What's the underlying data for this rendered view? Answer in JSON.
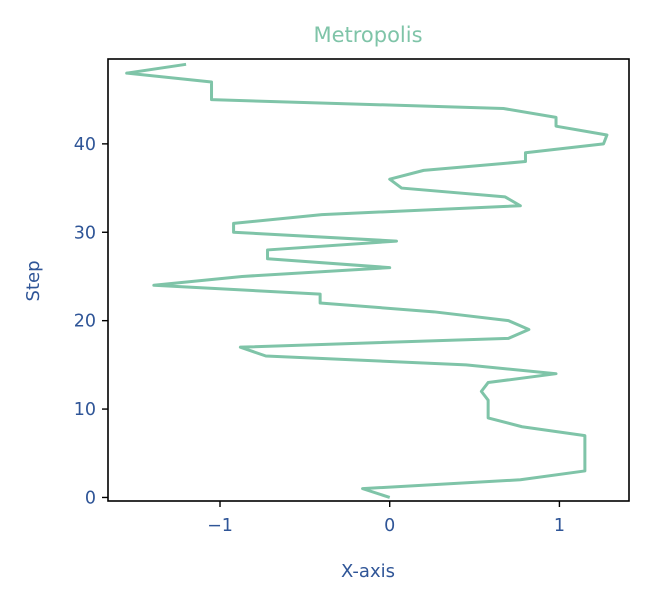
{
  "chart_data": {
    "type": "line",
    "title": "Metropolis",
    "xlabel": "X-axis",
    "ylabel": "Step",
    "xlim": [
      -1.66,
      1.41
    ],
    "ylim": [
      -0.4,
      49.6
    ],
    "xticks": [
      {
        "value": -1,
        "label": "−1"
      },
      {
        "value": 0,
        "label": "0"
      },
      {
        "value": 1,
        "label": "1"
      }
    ],
    "yticks": [
      {
        "value": 0,
        "label": "0"
      },
      {
        "value": 10,
        "label": "10"
      },
      {
        "value": 20,
        "label": "20"
      },
      {
        "value": 30,
        "label": "30"
      },
      {
        "value": 40,
        "label": "40"
      }
    ],
    "grid": false,
    "series": [
      {
        "x": [
          0.0,
          -0.16,
          0.77,
          1.15,
          1.15,
          1.15,
          1.15,
          1.15,
          0.78,
          0.58,
          0.58,
          0.58,
          0.54,
          0.58,
          0.98,
          0.45,
          -0.73,
          -0.88,
          0.7,
          0.82,
          0.7,
          0.26,
          -0.41,
          -0.41,
          -1.39,
          -0.87,
          0.0,
          -0.72,
          -0.72,
          0.04,
          -0.92,
          -0.92,
          -0.4,
          0.77,
          0.68,
          0.07,
          0.0,
          0.2,
          0.8,
          0.8,
          1.26,
          1.28,
          0.98,
          0.98,
          0.67,
          -1.05,
          -1.05,
          -1.05,
          -1.55,
          -1.2
        ],
        "y": [
          0,
          1,
          2,
          3,
          4,
          5,
          6,
          7,
          8,
          9,
          10,
          11,
          12,
          13,
          14,
          15,
          16,
          17,
          18,
          19,
          20,
          21,
          22,
          23,
          24,
          25,
          26,
          27,
          28,
          29,
          30,
          31,
          32,
          33,
          34,
          35,
          36,
          37,
          38,
          39,
          40,
          41,
          42,
          43,
          44,
          45,
          46,
          47,
          48,
          49
        ]
      }
    ]
  },
  "colors": {
    "line": "#7fc4a8",
    "title": "#7fc4a8",
    "text": "#2f5597",
    "frame": "#000000"
  }
}
